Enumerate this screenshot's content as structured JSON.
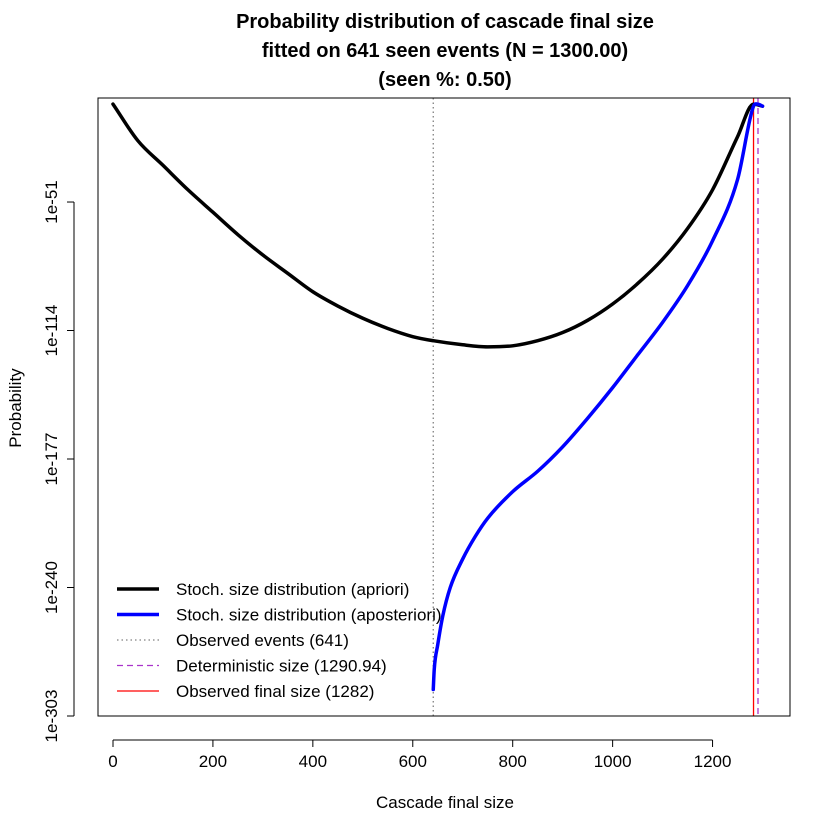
{
  "chart_data": {
    "type": "line",
    "title_lines": [
      "Probability distribution of cascade final size",
      "fitted on 641 seen events (N = 1300.00)",
      "(seen %: 0.50)"
    ],
    "xlabel": "Cascade final size",
    "ylabel": "Probability",
    "y_scale": "log10",
    "xlim": [
      -30,
      1355
    ],
    "ylim_log10": [
      -303,
      0
    ],
    "x_ticks": [
      0,
      200,
      400,
      600,
      800,
      1000,
      1200
    ],
    "x_tick_labels": [
      "0",
      "200",
      "400",
      "600",
      "800",
      "1000",
      "1200"
    ],
    "y_ticks_log10": [
      -51,
      -114,
      -177,
      -240,
      -303
    ],
    "y_tick_labels": [
      "1e-51",
      "1e-114",
      "1e-177",
      "1e-240",
      "1e-303"
    ],
    "grid": false,
    "legend_position": "bottom-left",
    "series": [
      {
        "name": "Stoch. size distribution (apriori)",
        "color": "#000000",
        "style": "solid",
        "x": [
          0,
          50,
          100,
          150,
          200,
          250,
          300,
          350,
          400,
          450,
          500,
          550,
          600,
          641,
          700,
          750,
          800,
          850,
          900,
          950,
          1000,
          1050,
          1100,
          1150,
          1200,
          1250,
          1282,
          1300
        ],
        "log10_y": [
          -3,
          -21,
          -33,
          -45,
          -56,
          -67,
          -77,
          -86,
          -95,
          -102,
          -108,
          -113,
          -117,
          -119,
          -121,
          -122,
          -121.5,
          -119,
          -115,
          -109,
          -101,
          -91,
          -79,
          -64,
          -45,
          -19,
          -3,
          -4
        ]
      },
      {
        "name": "Stoch. size distribution (aposteriori)",
        "color": "#0000ff",
        "style": "solid",
        "x": [
          641,
          643,
          650,
          660,
          675,
          700,
          725,
          750,
          800,
          850,
          900,
          950,
          1000,
          1050,
          1100,
          1150,
          1200,
          1250,
          1282,
          1290,
          1300
        ],
        "log10_y": [
          -290,
          -280,
          -268,
          -254,
          -240,
          -226,
          -215,
          -206,
          -193,
          -183,
          -171,
          -157,
          -142,
          -126,
          -110,
          -92,
          -70,
          -40,
          -4,
          -3,
          -4
        ]
      },
      {
        "name": "Observed events (641)",
        "color": "#808080",
        "style": "dotted",
        "vline_x": 641
      },
      {
        "name": "Deterministic size (1290.94)",
        "color": "#aa33cc",
        "style": "dashed",
        "vline_x": 1290.94
      },
      {
        "name": "Observed final size (1282)",
        "color": "#ff0000",
        "style": "solid",
        "vline_x": 1282
      }
    ]
  }
}
